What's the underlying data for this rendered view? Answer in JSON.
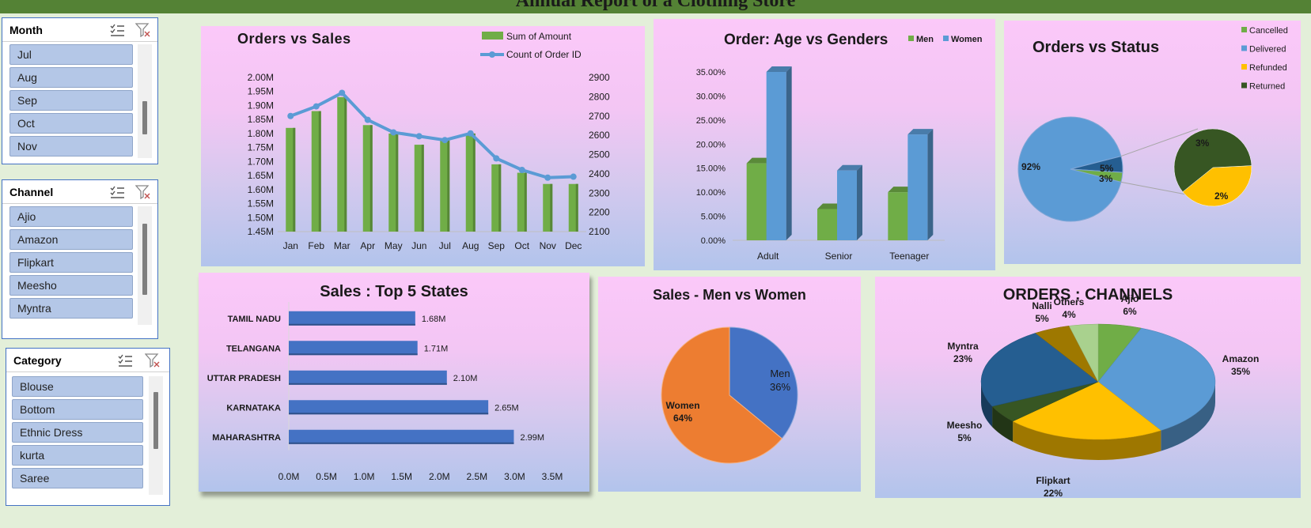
{
  "page": {
    "title": "Annual Report of a Clothing Store"
  },
  "slicers": [
    {
      "title": "Category",
      "key": "category",
      "items": [
        "Blouse",
        "Bottom",
        "Ethnic Dress",
        "kurta",
        "Saree"
      ],
      "clear_icon": "clear-filter-icon",
      "multiselect_icon": "multi-select-icon"
    },
    {
      "title": "Month",
      "key": "month",
      "items": [
        "Jul",
        "Aug",
        "Sep",
        "Oct",
        "Nov"
      ],
      "clear_icon": "clear-filter-icon",
      "multiselect_icon": "multi-select-icon"
    },
    {
      "title": "Channel",
      "key": "channel",
      "items": [
        "Ajio",
        "Amazon",
        "Flipkart",
        "Meesho",
        "Myntra"
      ],
      "clear_icon": "clear-filter-icon",
      "multiselect_icon": "multi-select-icon"
    }
  ],
  "colors": {
    "green": "#70ad47",
    "blue": "#5b9bd5",
    "dark_blue": "#255e91",
    "yellow": "#ffc000",
    "dark_green": "#375623",
    "orange": "#ed7d31",
    "bar_blue": "#4472c4",
    "olive": "#9e7800"
  },
  "chart_data": [
    {
      "id": "orders_vs_sales",
      "type": "bar",
      "title": "Orders vs Sales",
      "categories": [
        "Jan",
        "Feb",
        "Mar",
        "Apr",
        "May",
        "Jun",
        "Jul",
        "Aug",
        "Sep",
        "Oct",
        "Nov",
        "Dec"
      ],
      "series": [
        {
          "name": "Sum of Amount",
          "type": "bar",
          "axis": "left",
          "values": [
            1.82,
            1.88,
            1.93,
            1.83,
            1.8,
            1.76,
            1.78,
            1.8,
            1.69,
            1.66,
            1.62,
            1.62
          ]
        },
        {
          "name": "Count of Order ID",
          "type": "line",
          "axis": "right",
          "values": [
            2700,
            2750,
            2820,
            2680,
            2615,
            2595,
            2575,
            2610,
            2480,
            2420,
            2380,
            2385
          ]
        }
      ],
      "y_ticks": [
        "1.45M",
        "1.50M",
        "1.55M",
        "1.60M",
        "1.65M",
        "1.70M",
        "1.75M",
        "1.80M",
        "1.85M",
        "1.90M",
        "1.95M",
        "2.00M"
      ],
      "ylim": [
        1.45,
        2.0
      ],
      "y2_ticks": [
        "2100",
        "2200",
        "2300",
        "2400",
        "2500",
        "2600",
        "2700",
        "2800",
        "2900"
      ],
      "y2lim": [
        2100,
        2900
      ],
      "legend": "top-right"
    },
    {
      "id": "age_vs_gender",
      "type": "bar",
      "title": "Order: Age vs Genders",
      "categories": [
        "Adult",
        "Senior",
        "Teenager"
      ],
      "series": [
        {
          "name": "Men",
          "values": [
            16.0,
            6.5,
            10.0
          ]
        },
        {
          "name": "Women",
          "values": [
            35.0,
            14.5,
            22.0
          ]
        }
      ],
      "y_ticks": [
        "0.00%",
        "5.00%",
        "10.00%",
        "15.00%",
        "20.00%",
        "25.00%",
        "30.00%",
        "35.00%"
      ],
      "ylim": [
        0,
        35
      ],
      "legend": "top-right"
    },
    {
      "id": "orders_vs_status",
      "type": "pie",
      "title": "Orders vs Status",
      "slices": [
        {
          "name": "Cancelled",
          "value": 3,
          "label": "3%"
        },
        {
          "name": "Delivered",
          "value": 92,
          "label": "92%"
        },
        {
          "name": "Refunded",
          "value": 2,
          "label": "2%"
        },
        {
          "name": "Returned",
          "value": 3,
          "label": "3%"
        }
      ],
      "secondary_label": "5%",
      "legend": "top-right"
    },
    {
      "id": "top5_states",
      "type": "bar",
      "orientation": "horizontal",
      "title": "Sales : Top 5 States",
      "categories": [
        "TAMIL NADU",
        "TELANGANA",
        "UTTAR PRADESH",
        "KARNATAKA",
        "MAHARASHTRA"
      ],
      "values": [
        1.68,
        1.71,
        2.1,
        2.65,
        2.99
      ],
      "value_labels": [
        "1.68M",
        "1.71M",
        "2.10M",
        "2.65M",
        "2.99M"
      ],
      "x_ticks": [
        "0.0M",
        "0.5M",
        "1.0M",
        "1.5M",
        "2.0M",
        "2.5M",
        "3.0M",
        "3.5M"
      ],
      "xlim": [
        0,
        3.5
      ]
    },
    {
      "id": "men_vs_women",
      "type": "pie",
      "title": "Sales - Men vs Women",
      "slices": [
        {
          "name": "Men",
          "value": 36,
          "label": "36%"
        },
        {
          "name": "Women",
          "value": 64,
          "label": "64%"
        }
      ]
    },
    {
      "id": "orders_channels",
      "type": "pie",
      "title": "ORDERS : CHANNELS",
      "slices": [
        {
          "name": "Ajio",
          "value": 6,
          "label": "6%"
        },
        {
          "name": "Amazon",
          "value": 35,
          "label": "35%"
        },
        {
          "name": "Flipkart",
          "value": 22,
          "label": "22%"
        },
        {
          "name": "Meesho",
          "value": 5,
          "label": "5%"
        },
        {
          "name": "Myntra",
          "value": 23,
          "label": "23%"
        },
        {
          "name": "Nalli",
          "value": 5,
          "label": "5%"
        },
        {
          "name": "Others",
          "value": 4,
          "label": "4%"
        }
      ]
    }
  ]
}
